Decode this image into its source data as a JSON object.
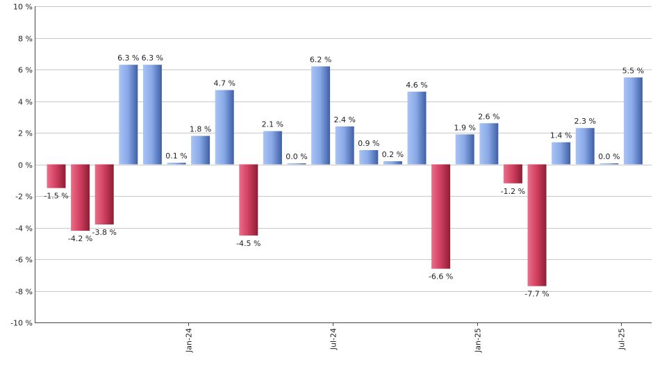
{
  "chart_data": {
    "type": "bar",
    "y_unit_suffix": " %",
    "ylim": [
      -10,
      10
    ],
    "y_ticks": [
      10,
      8,
      6,
      4,
      2,
      0,
      -2,
      -4,
      -6,
      -8,
      -10
    ],
    "y_tick_labels": [
      "10 %",
      "8 %",
      "6 %",
      "4 %",
      "2 %",
      "0 %",
      "-2 %",
      "-4 %",
      "-6 %",
      "-8 %",
      "-10 %"
    ],
    "x_tick_labels": [
      {
        "label": "Jan-24",
        "after_index": 5
      },
      {
        "label": "Jul-24",
        "after_index": 11
      },
      {
        "label": "Jan-25",
        "after_index": 17
      },
      {
        "label": "Jul-25",
        "after_index": 23
      }
    ],
    "values": [
      -1.5,
      -4.2,
      -3.8,
      6.3,
      6.3,
      0.1,
      1.8,
      4.7,
      -4.5,
      2.1,
      0.0,
      6.2,
      2.4,
      0.9,
      0.2,
      4.6,
      -6.6,
      1.9,
      2.6,
      -1.2,
      -7.7,
      1.4,
      2.3,
      0.0,
      5.5
    ],
    "data_labels": [
      "-1.5 %",
      "-4.2 %",
      "-3.8 %",
      "6.3 %",
      "6.3 %",
      "0.1 %",
      "1.8 %",
      "4.7 %",
      "-4.5 %",
      "2.1 %",
      "0.0 %",
      "6.2 %",
      "2.4 %",
      "0.9 %",
      "0.2 %",
      "4.6 %",
      "-6.6 %",
      "1.9 %",
      "2.6 %",
      "-1.2 %",
      "-7.7 %",
      "1.4 %",
      "2.3 %",
      "0.0 %",
      "5.5 %"
    ],
    "positive_color": "#7a9ee0",
    "negative_color": "#c0304a",
    "grid": true,
    "legend": "none"
  }
}
